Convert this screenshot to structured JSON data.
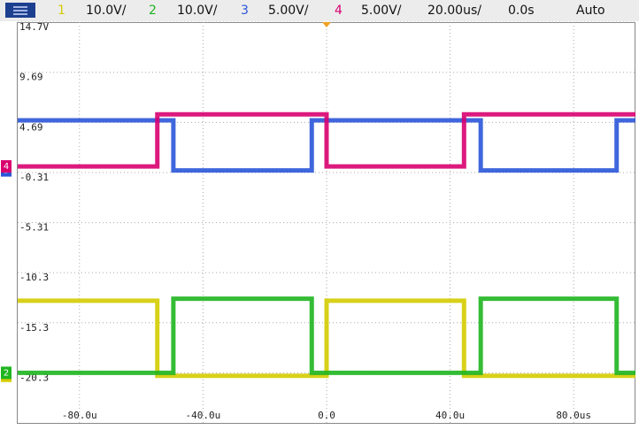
{
  "header": {
    "scales": [
      "10.0V/",
      "10.0V/",
      "5.00V/",
      "5.00V/"
    ],
    "timebase": "20.00us/",
    "delay": "0.0s",
    "mode": "Auto"
  },
  "chart_data": {
    "type": "line",
    "x": [
      -100,
      -54.8,
      -54.8,
      -49.6,
      -49.6,
      -4.8,
      -4.8,
      0,
      0,
      44.5,
      44.5,
      49.9,
      49.9,
      93.9,
      93.9,
      100
    ],
    "series": [
      {
        "name": "1",
        "color": "#d4cc00",
        "values": [
          -13.1,
          -13.1,
          -20.6,
          -20.6,
          -20.6,
          -20.6,
          -20.6,
          -20.6,
          -13.1,
          -13.1,
          -20.6,
          -20.6,
          -20.6,
          -20.6,
          -20.6,
          -20.6
        ]
      },
      {
        "name": "2",
        "color": "#1fb51f",
        "values": [
          -20.3,
          -20.3,
          -20.3,
          -20.3,
          -12.9,
          -12.9,
          -20.3,
          -20.3,
          -20.3,
          -20.3,
          -20.3,
          -20.3,
          -12.9,
          -12.9,
          -20.3,
          -20.3
        ]
      },
      {
        "name": "3",
        "color": "#2a55d8",
        "values": [
          4.9,
          4.9,
          4.9,
          4.9,
          -0.1,
          -0.1,
          4.9,
          4.9,
          4.9,
          4.9,
          4.9,
          4.9,
          -0.1,
          -0.1,
          4.9,
          4.9
        ]
      },
      {
        "name": "4",
        "color": "#d8006f",
        "values": [
          0.3,
          0.3,
          5.5,
          5.5,
          5.5,
          5.5,
          5.5,
          5.5,
          0.3,
          0.3,
          5.5,
          5.5,
          5.5,
          5.5,
          5.5,
          5.5
        ]
      }
    ],
    "xlim": [
      -100,
      100
    ],
    "xticks": [
      {
        "value": -80,
        "label": "-80.0u"
      },
      {
        "value": -40,
        "label": "-40.0u"
      },
      {
        "value": 0,
        "label": "0.0"
      },
      {
        "value": 40,
        "label": "40.0u"
      },
      {
        "value": 80,
        "label": "80.0us"
      }
    ],
    "ylim": [
      -25.3,
      14.7
    ],
    "yticks": [
      {
        "value": 14.7,
        "label": "14.7V"
      },
      9.69,
      4.69,
      -0.31,
      -5.31,
      -10.3,
      -15.3,
      -20.3
    ],
    "grid": true
  }
}
